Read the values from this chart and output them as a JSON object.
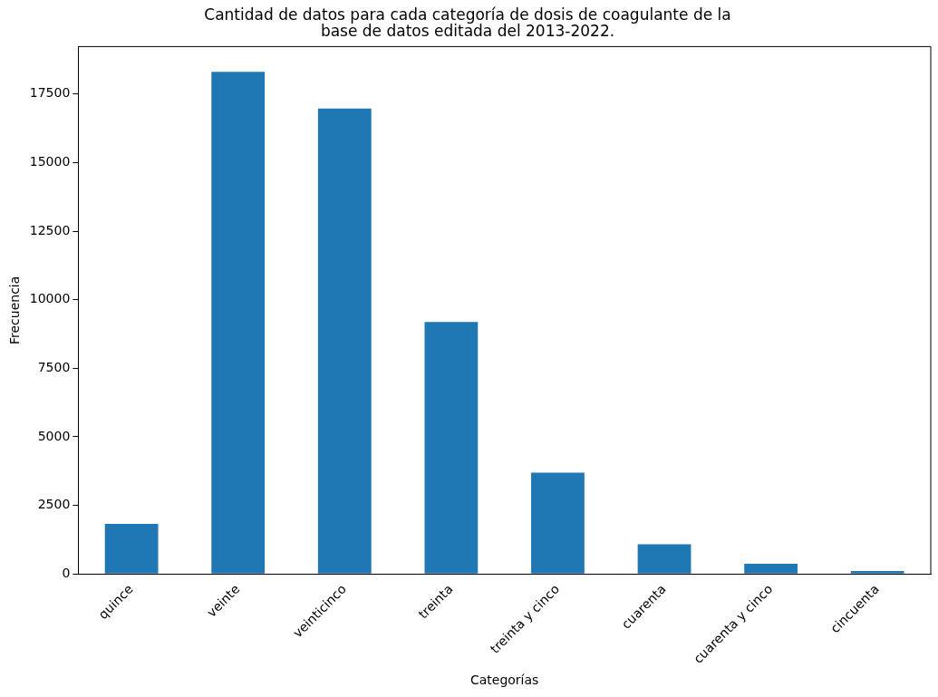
{
  "chart_data": {
    "type": "bar",
    "title": "Cantidad de datos para cada categoría de dosis de coagulante de la\nbase de datos editada del 2013-2022.",
    "xlabel": "Categorías",
    "ylabel": "Frecuencia",
    "categories": [
      "quince",
      "veinte",
      "veinticinco",
      "treinta",
      "treinta y cinco",
      "cuarenta",
      "cuarenta y cinco",
      "cincuenta"
    ],
    "values": [
      1830,
      18310,
      16970,
      9190,
      3690,
      1080,
      375,
      110
    ],
    "color": "#1f77b4",
    "ylim": [
      0,
      19230
    ],
    "yticks": [
      0,
      2500,
      5000,
      7500,
      10000,
      12500,
      15000,
      17500
    ],
    "grid": false,
    "legend": false
  }
}
